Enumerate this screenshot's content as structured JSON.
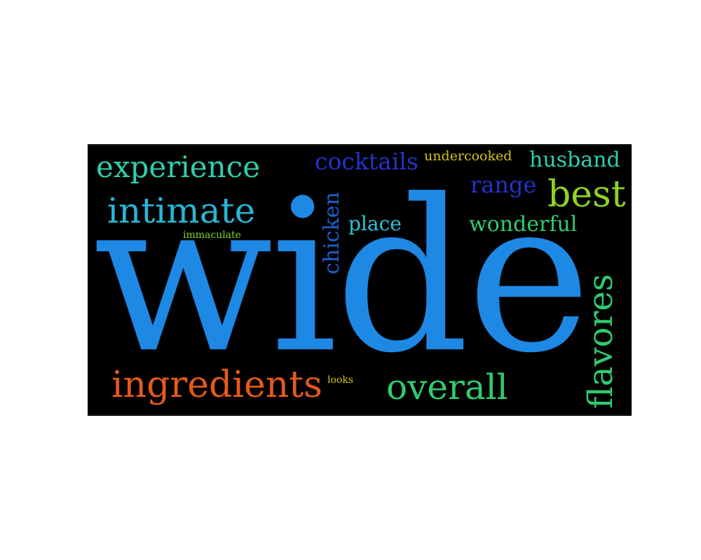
{
  "word_cloud": {
    "background": "#000000",
    "words": [
      {
        "id": "wide",
        "text": "wide",
        "color": "#1e88e5",
        "orientation": "horizontal"
      },
      {
        "id": "experience",
        "text": "experience",
        "color": "#2ecfb0",
        "orientation": "horizontal"
      },
      {
        "id": "intimate",
        "text": "intimate",
        "color": "#29b6d6",
        "orientation": "horizontal"
      },
      {
        "id": "immaculate",
        "text": "immaculate",
        "color": "#7ed321",
        "orientation": "horizontal"
      },
      {
        "id": "cocktails",
        "text": "cocktails",
        "color": "#2233cc",
        "orientation": "horizontal"
      },
      {
        "id": "undercooked",
        "text": "undercooked",
        "color": "#d8c21a",
        "orientation": "horizontal"
      },
      {
        "id": "husband",
        "text": "husband",
        "color": "#2ecfb0",
        "orientation": "horizontal"
      },
      {
        "id": "range",
        "text": "range",
        "color": "#2233cc",
        "orientation": "horizontal"
      },
      {
        "id": "best",
        "text": "best",
        "color": "#8ed321",
        "orientation": "horizontal"
      },
      {
        "id": "place",
        "text": "place",
        "color": "#29c6d6",
        "orientation": "horizontal"
      },
      {
        "id": "wonderful",
        "text": "wonderful",
        "color": "#2ecc71",
        "orientation": "horizontal"
      },
      {
        "id": "chicken",
        "text": "chicken",
        "color": "#1e5fd0",
        "orientation": "vertical"
      },
      {
        "id": "flavores",
        "text": "flavores",
        "color": "#2ecc71",
        "orientation": "vertical"
      },
      {
        "id": "ingredients",
        "text": "ingredients",
        "color": "#e35a1c",
        "orientation": "horizontal"
      },
      {
        "id": "looks",
        "text": "looks",
        "color": "#d8c21a",
        "orientation": "horizontal"
      },
      {
        "id": "overall",
        "text": "overall",
        "color": "#2ecc71",
        "orientation": "horizontal"
      }
    ]
  }
}
